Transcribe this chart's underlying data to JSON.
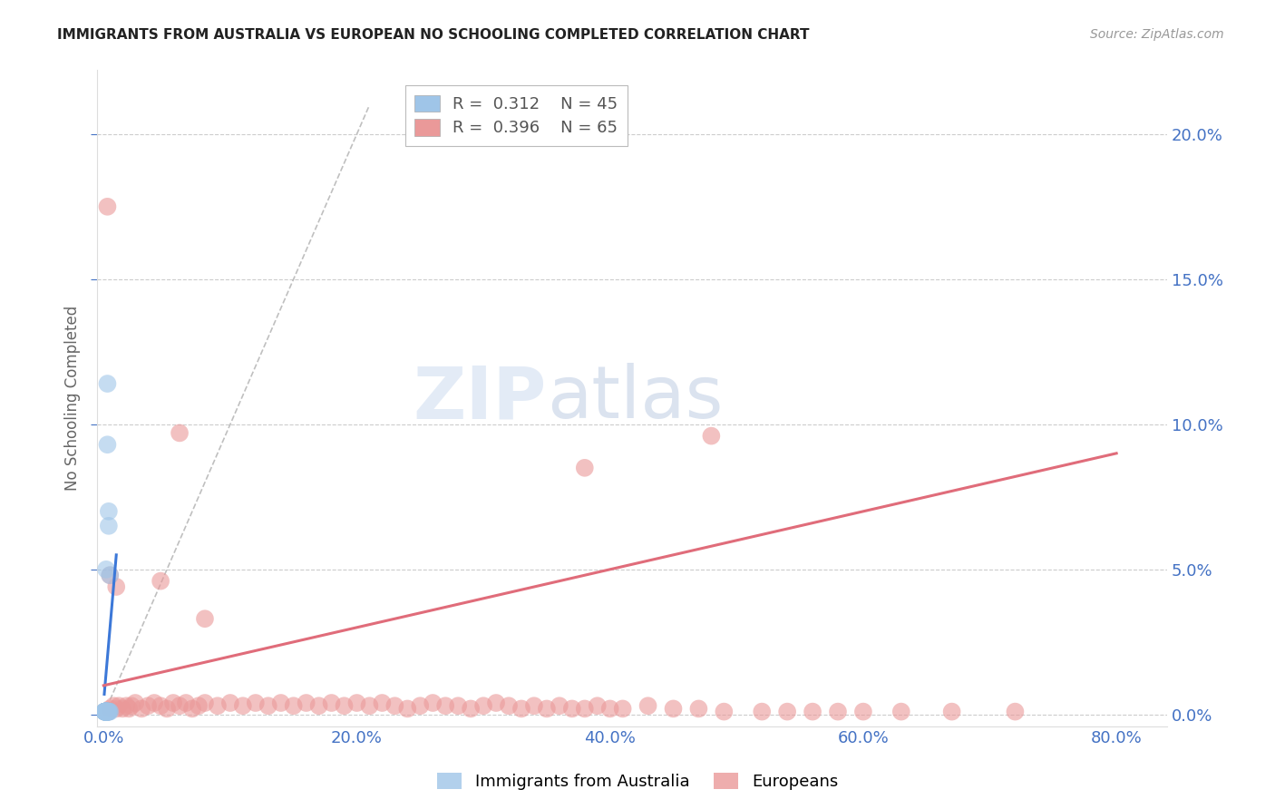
{
  "title": "IMMIGRANTS FROM AUSTRALIA VS EUROPEAN NO SCHOOLING COMPLETED CORRELATION CHART",
  "source": "Source: ZipAtlas.com",
  "xlabel_ticks": [
    0.0,
    0.2,
    0.4,
    0.6,
    0.8
  ],
  "ylabel_ticks": [
    0.0,
    0.05,
    0.1,
    0.15,
    0.2
  ],
  "ylabel_label": "No Schooling Completed",
  "xlim": [
    -0.005,
    0.84
  ],
  "ylim": [
    -0.004,
    0.222
  ],
  "watermark_zip": "ZIP",
  "watermark_atlas": "atlas",
  "legend1_r": "0.312",
  "legend1_n": "45",
  "legend2_r": "0.396",
  "legend2_n": "65",
  "blue_color": "#9fc5e8",
  "pink_color": "#ea9999",
  "blue_line_color": "#3c78d8",
  "pink_line_color": "#e06c7a",
  "diag_line_color": "#b0b0b0",
  "axis_label_color": "#4472c4",
  "title_color": "#222222",
  "aus_scatter_x": [
    0.002,
    0.003,
    0.001,
    0.004,
    0.002,
    0.003,
    0.001,
    0.005,
    0.002,
    0.001,
    0.003,
    0.002,
    0.001,
    0.004,
    0.002,
    0.001,
    0.003,
    0.002,
    0.001,
    0.002,
    0.003,
    0.001,
    0.002,
    0.001,
    0.003,
    0.002,
    0.001,
    0.004,
    0.002,
    0.001,
    0.003,
    0.002,
    0.001,
    0.002,
    0.001,
    0.003,
    0.002,
    0.001,
    0.002,
    0.003,
    0.001,
    0.002,
    0.001,
    0.002,
    0.003
  ],
  "aus_scatter_y": [
    0.001,
    0.001,
    0.001,
    0.001,
    0.001,
    0.001,
    0.001,
    0.001,
    0.001,
    0.001,
    0.001,
    0.001,
    0.001,
    0.001,
    0.001,
    0.001,
    0.001,
    0.001,
    0.001,
    0.001,
    0.001,
    0.001,
    0.001,
    0.001,
    0.001,
    0.001,
    0.001,
    0.001,
    0.001,
    0.001,
    0.001,
    0.001,
    0.001,
    0.001,
    0.001,
    0.001,
    0.001,
    0.001,
    0.001,
    0.001,
    0.001,
    0.001,
    0.001,
    0.001,
    0.001
  ],
  "aus_outliers_x": [
    0.003,
    0.003,
    0.004,
    0.004,
    0.005,
    0.002
  ],
  "aus_outliers_y": [
    0.114,
    0.093,
    0.065,
    0.07,
    0.048,
    0.05
  ],
  "eur_scatter_x": [
    0.005,
    0.008,
    0.01,
    0.012,
    0.015,
    0.018,
    0.02,
    0.022,
    0.025,
    0.03,
    0.035,
    0.04,
    0.045,
    0.05,
    0.055,
    0.06,
    0.065,
    0.07,
    0.075,
    0.08,
    0.09,
    0.1,
    0.11,
    0.12,
    0.13,
    0.14,
    0.15,
    0.16,
    0.17,
    0.18,
    0.19,
    0.2,
    0.21,
    0.22,
    0.23,
    0.24,
    0.25,
    0.26,
    0.27,
    0.28,
    0.29,
    0.3,
    0.31,
    0.32,
    0.33,
    0.34,
    0.35,
    0.36,
    0.37,
    0.38,
    0.39,
    0.4,
    0.41,
    0.43,
    0.45,
    0.47,
    0.49,
    0.52,
    0.54,
    0.56,
    0.58,
    0.6,
    0.63,
    0.67,
    0.72
  ],
  "eur_scatter_y": [
    0.002,
    0.003,
    0.002,
    0.003,
    0.002,
    0.003,
    0.002,
    0.003,
    0.004,
    0.002,
    0.003,
    0.004,
    0.003,
    0.002,
    0.004,
    0.003,
    0.004,
    0.002,
    0.003,
    0.004,
    0.003,
    0.004,
    0.003,
    0.004,
    0.003,
    0.004,
    0.003,
    0.004,
    0.003,
    0.004,
    0.003,
    0.004,
    0.003,
    0.004,
    0.003,
    0.002,
    0.003,
    0.004,
    0.003,
    0.003,
    0.002,
    0.003,
    0.004,
    0.003,
    0.002,
    0.003,
    0.002,
    0.003,
    0.002,
    0.002,
    0.003,
    0.002,
    0.002,
    0.003,
    0.002,
    0.002,
    0.001,
    0.001,
    0.001,
    0.001,
    0.001,
    0.001,
    0.001,
    0.001,
    0.001
  ],
  "eur_outliers_x": [
    0.003,
    0.34,
    0.48,
    0.38,
    0.005,
    0.01,
    0.045,
    0.06,
    0.08
  ],
  "eur_outliers_y": [
    0.175,
    0.209,
    0.096,
    0.085,
    0.048,
    0.044,
    0.046,
    0.097,
    0.033
  ],
  "aus_line_x": [
    0.001,
    0.01
  ],
  "aus_line_y": [
    0.005,
    0.06
  ],
  "eur_line_x": [
    0.0,
    0.8
  ],
  "eur_line_y": [
    0.01,
    0.09
  ]
}
